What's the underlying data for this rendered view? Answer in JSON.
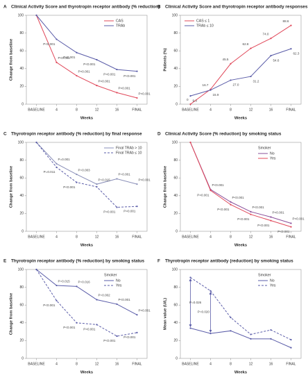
{
  "chart_data": [
    {
      "type": "line",
      "panel": "A",
      "title": "Clinical Activity Score and thyrotropin receptor antibody (% reduction)",
      "x_label": "Weeks",
      "y_label": "Change from baseline",
      "categories": [
        "BASELINE",
        "4",
        "8",
        "12",
        "16",
        "FINAL"
      ],
      "ylim": [
        0,
        100
      ],
      "yticks": [
        0,
        20,
        40,
        60,
        80,
        100
      ],
      "legend": "upper right",
      "series": [
        {
          "name": "CAS",
          "color": "#e0485a",
          "dash": false,
          "values": [
            100,
            47,
            32,
            21,
            13,
            7
          ],
          "point_labels": [
            null,
            "P<0.001",
            "P<0.001",
            "P<0.001",
            "P<0.001",
            "P<0.001"
          ]
        },
        {
          "name": "TRAb",
          "color": "#5a5ca8",
          "dash": false,
          "values": [
            100,
            73,
            58,
            50,
            39,
            37
          ],
          "point_labels": [
            null,
            "P<0.001",
            "P<0.001",
            "P<0.001",
            "P<0.001",
            "P<0.001"
          ]
        }
      ]
    },
    {
      "type": "line",
      "panel": "B",
      "title": "Clinical Activity Score and thyrotropin receptor antibody responses",
      "x_label": "Weeks",
      "y_label": "Patients (%)",
      "categories": [
        "BASELINE",
        "4",
        "8",
        "12",
        "16",
        "FINAL"
      ],
      "ylim": [
        0,
        100
      ],
      "yticks": [
        0,
        20,
        40,
        60,
        80,
        100
      ],
      "legend": "upper left",
      "series": [
        {
          "name": "CAS ≤ 1",
          "color": "#e0485a",
          "dash": false,
          "values": [
            0,
            16.7,
            45.5,
            62.8,
            74.0,
            88.6
          ],
          "value_labels": [
            "0",
            "16.7",
            "45.5",
            "62.8",
            "74.0",
            "88.6"
          ]
        },
        {
          "name": "TRAb ≤ 10",
          "color": "#5a5ca8",
          "dash": false,
          "values": [
            9.3,
            15.9,
            27.0,
            31.2,
            54.6,
            62.3
          ],
          "value_labels": [
            "9.3",
            "15.9",
            "27.0",
            "31.2",
            "54.6",
            "62.3"
          ]
        }
      ]
    },
    {
      "type": "line",
      "panel": "C",
      "title": "Thyrotropin receptor antibody (% reduction) by final response",
      "x_label": "Weeks",
      "y_label": "Change from baseline",
      "categories": [
        "BASELINE",
        "4",
        "8",
        "12",
        "16",
        "FINAL"
      ],
      "ylim": [
        0,
        100
      ],
      "yticks": [
        0,
        20,
        40,
        60,
        80,
        100
      ],
      "legend": "upper right",
      "series": [
        {
          "name": "Final TRAb > 10",
          "color": "#8a8fb8",
          "dash": false,
          "values": [
            100,
            76,
            64,
            53,
            59,
            53
          ],
          "point_labels": [
            null,
            "P=0.001",
            "P=0.003",
            "P=0.015",
            "P=0.001",
            "P<0.001"
          ]
        },
        {
          "name": "Final TRAb ≤ 10",
          "color": "#5a5ca8",
          "dash": true,
          "values": [
            100,
            72,
            55,
            50,
            27,
            28
          ],
          "point_labels": [
            null,
            "P=0.011",
            "P<0.001",
            null,
            "P<0.001",
            "P<0.001"
          ]
        }
      ]
    },
    {
      "type": "line",
      "panel": "D",
      "title": "Clinical Activity Score (% reduction) by smoking status",
      "x_label": "Weeks",
      "y_label": "Change from baseline",
      "categories": [
        "BASELINE",
        "4",
        "8",
        "12",
        "16",
        "FINAL"
      ],
      "ylim": [
        0,
        100
      ],
      "yticks": [
        0,
        20,
        40,
        60,
        80,
        100
      ],
      "legend": "upper right",
      "legend_title": "Smoker",
      "series": [
        {
          "name": "No",
          "color": "#8a4f9a",
          "dash": false,
          "values": [
            100,
            47,
            33,
            22,
            16,
            9
          ],
          "point_labels": [
            null,
            "P<0.001",
            "P<0.001",
            "P<0.001",
            "P<0.001",
            "P<0.001"
          ]
        },
        {
          "name": "Yes",
          "color": "#e0485a",
          "dash": false,
          "values": [
            100,
            46,
            30,
            19,
            12,
            5
          ],
          "point_labels": [
            null,
            "P<0.001",
            "P<0.001",
            "P<0.001",
            "P<0.001",
            "P<0.001"
          ]
        }
      ]
    },
    {
      "type": "line",
      "panel": "E",
      "title": "Thyrotropin receptor antibody (% reduction) by smoking status",
      "x_label": "Weeks",
      "y_label": "Change from baseline",
      "categories": [
        "BASELINE",
        "4",
        "8",
        "12",
        "16",
        "FINAL"
      ],
      "ylim": [
        0,
        100
      ],
      "yticks": [
        0,
        20,
        40,
        60,
        80,
        100
      ],
      "legend": "upper right",
      "legend_title": "Smoker",
      "series": [
        {
          "name": "No",
          "color": "#5a5ca8",
          "dash": false,
          "values": [
            100,
            82,
            81,
            66,
            61,
            49
          ],
          "point_labels": [
            null,
            "P=0.015",
            "P=0.016",
            "P=0.002",
            "P<0.001",
            "P<0.001"
          ]
        },
        {
          "name": "Yes",
          "color": "#5a5ca8",
          "dash": true,
          "values": [
            100,
            65,
            40,
            38,
            25,
            29
          ],
          "point_labels": [
            null,
            "P<0.001",
            "P<0.001",
            "P<0.001",
            "P<0.001",
            "P<0.001"
          ]
        }
      ]
    },
    {
      "type": "line",
      "panel": "F",
      "title": "Thyrotropin receptor antibody (reduction) by smoking status",
      "x_label": "Weeks",
      "y_label": "Mean value (U/L)",
      "categories": [
        "BASELINE",
        "4",
        "8",
        "12",
        "16",
        "FINAL"
      ],
      "ylim": [
        0,
        100
      ],
      "yticks": [
        0,
        20,
        40,
        60,
        80,
        100
      ],
      "legend": "upper right",
      "legend_title": "Smoker",
      "label_style": "arrow",
      "series": [
        {
          "name": "No",
          "color": "#5a5ca8",
          "dash": false,
          "values": [
            34,
            28,
            31,
            22,
            22,
            12
          ]
        },
        {
          "name": "Yes",
          "color": "#5a5ca8",
          "dash": true,
          "values": [
            91,
            76,
            46,
            27,
            32,
            21
          ],
          "point_labels": [
            "P=0.026",
            "P=0.020",
            null,
            null,
            null,
            null
          ]
        }
      ]
    }
  ]
}
